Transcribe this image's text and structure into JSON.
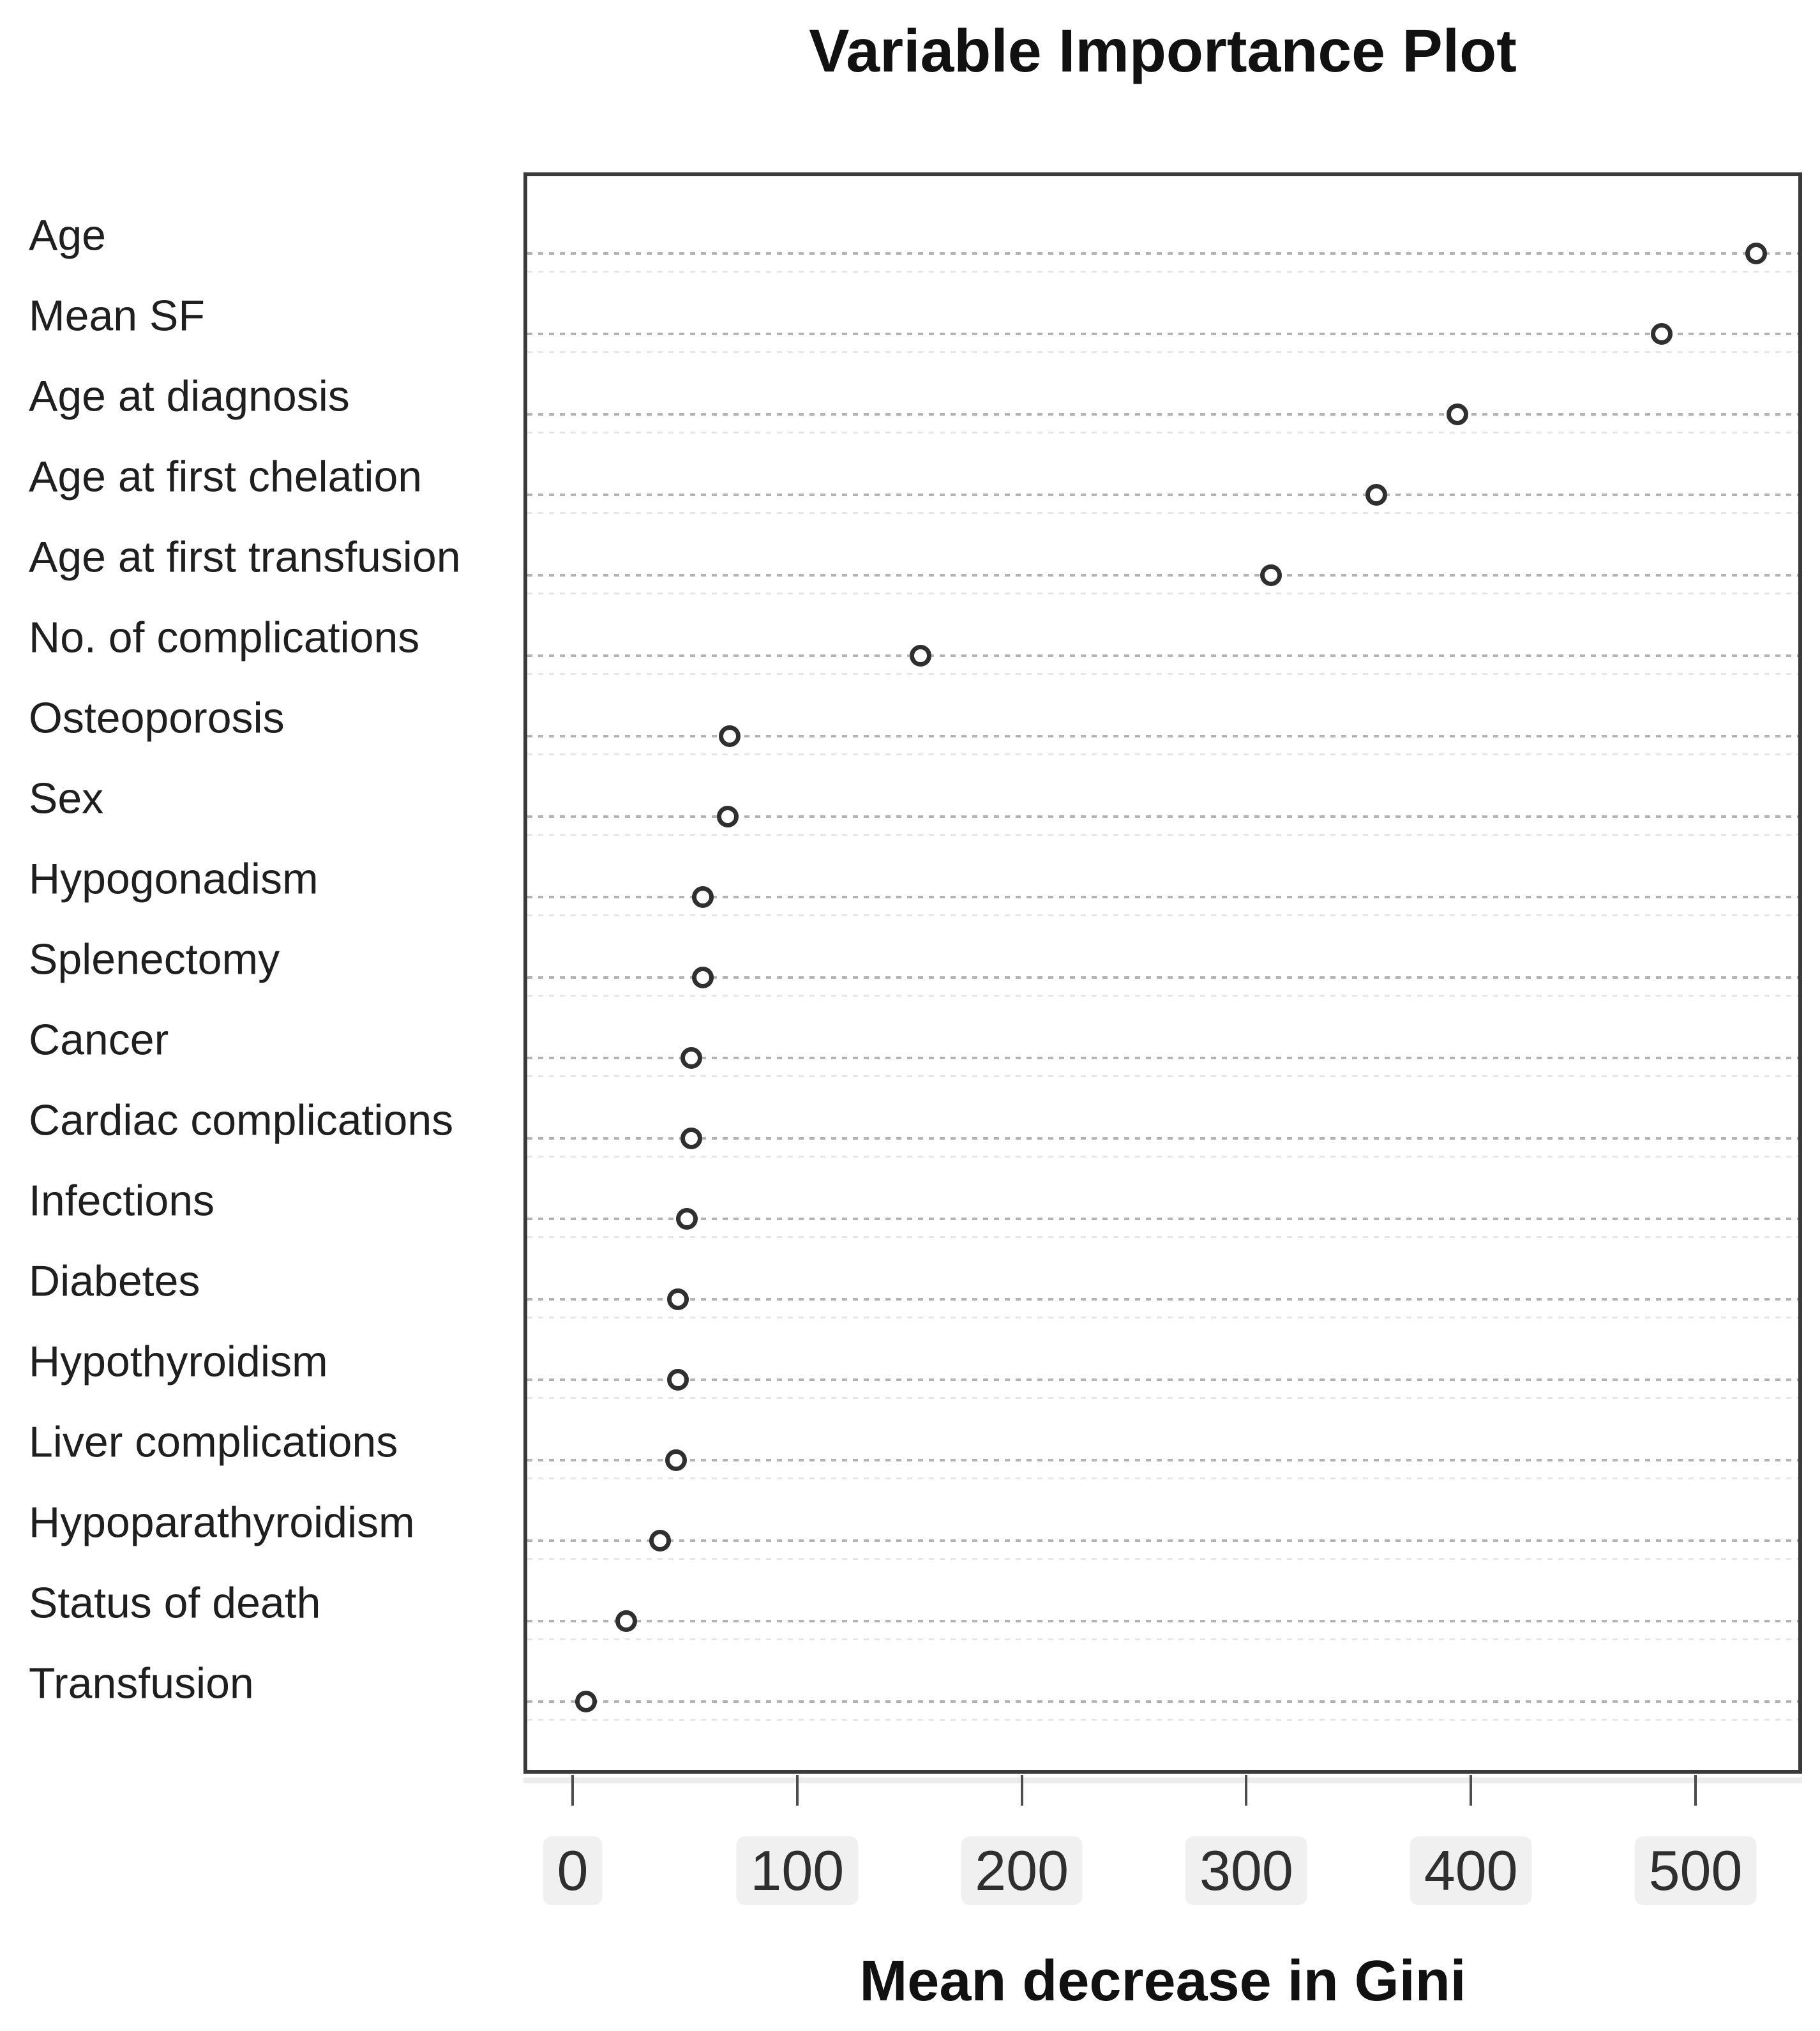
{
  "title": "Variable Importance Plot",
  "x_axis_title": "Mean decrease in Gini",
  "chart_data": {
    "type": "scatter",
    "subtype": "dot-chart",
    "title": "Variable Importance Plot",
    "xlabel": "Mean decrease in Gini",
    "ylabel": "",
    "categories": [
      "Age",
      "Mean SF",
      "Age at diagnosis",
      "Age at first chelation",
      "Age at first transfusion",
      "No. of complications",
      "Osteoporosis",
      "Sex",
      "Hypogonadism",
      "Splenectomy",
      "Cancer",
      "Cardiac complications",
      "Infections",
      "Diabetes",
      "Hypothyroidism",
      "Liver complications",
      "Hypoparathyroidism",
      "Status of death",
      "Transfusion"
    ],
    "values": [
      527,
      485,
      394,
      358,
      311,
      155,
      70,
      69,
      58,
      58,
      53,
      53,
      51,
      47,
      47,
      46,
      39,
      24,
      6
    ],
    "xlim": [
      0,
      540
    ],
    "xticks": [
      "0",
      "100",
      "200",
      "300",
      "400",
      "500"
    ],
    "xtick_values": [
      0,
      100,
      200,
      300,
      400,
      500
    ],
    "grid": "dotted horizontal gridline per category",
    "legend": "none",
    "marker": "open-circle"
  },
  "colors": {
    "background": "#ffffff",
    "frame": "#3a3a3a",
    "gridline": "#b3b3b3",
    "marker_stroke": "#2f2f2f",
    "text": "#1c1c1c",
    "tick_label_bg": "#f0f0f0"
  }
}
